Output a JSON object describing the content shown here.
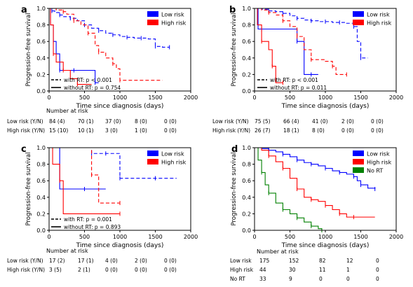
{
  "chart_data": [
    {
      "type": "line",
      "panel_label": "a",
      "xlabel": "Time since diagnosis (days)",
      "ylabel": "Progression-free survival",
      "xlim": [
        0,
        2000
      ],
      "ylim": [
        0,
        1.0
      ],
      "x_ticks": [
        "0",
        "500",
        "1000",
        "1500",
        "2000"
      ],
      "y_ticks": [
        "0.0",
        "0.2",
        "0.4",
        "0.6",
        "0.8",
        "1.0"
      ],
      "legend": [
        "Low risk",
        "High risk"
      ],
      "legend_colors": [
        "#0000ff",
        "#ff0000"
      ],
      "annotations": [
        "with RT: p < 0.001",
        "without RT: p = 0.754"
      ],
      "series": [
        {
          "name": "Low risk",
          "color": "#0000ff",
          "style": "dashed",
          "x": [
            0,
            20,
            40,
            80,
            150,
            200,
            300,
            400,
            500,
            600,
            700,
            800,
            900,
            1000,
            1100,
            1200,
            1300,
            1400,
            1500,
            1600,
            1700
          ],
          "y": [
            1.0,
            0.98,
            0.97,
            0.95,
            0.92,
            0.9,
            0.88,
            0.85,
            0.8,
            0.76,
            0.73,
            0.7,
            0.68,
            0.66,
            0.65,
            0.64,
            0.64,
            0.63,
            0.54,
            0.53,
            0.53
          ]
        },
        {
          "name": "",
          "color": "#0000ff",
          "style": "solid",
          "x": [
            0,
            20,
            60,
            100,
            150,
            250,
            350,
            550,
            650,
            700
          ],
          "y": [
            1.0,
            0.8,
            0.6,
            0.45,
            0.25,
            0.25,
            0.25,
            0.25,
            0.1,
            0.1
          ]
        },
        {
          "name": "High risk",
          "color": "#ff0000",
          "style": "dashed",
          "x": [
            0,
            100,
            200,
            250,
            350,
            450,
            550,
            650,
            700,
            800,
            900,
            950,
            1000,
            1600
          ],
          "y": [
            1.0,
            0.98,
            0.96,
            0.93,
            0.85,
            0.8,
            0.7,
            0.55,
            0.47,
            0.4,
            0.33,
            0.27,
            0.13,
            0.13
          ]
        },
        {
          "name": "",
          "color": "#ff0000",
          "style": "solid",
          "x": [
            0,
            20,
            60,
            100,
            200,
            300,
            400,
            600
          ],
          "y": [
            1.0,
            0.8,
            0.45,
            0.35,
            0.25,
            0.15,
            0.08,
            0.08
          ]
        }
      ],
      "risk_table": {
        "heading": "Number at risk",
        "rows": [
          {
            "label": "Low risk (Y/N)",
            "values": [
              "84 (4)",
              "70 (1)",
              "37 (0)",
              "8 (0)",
              "0 (0)"
            ]
          },
          {
            "label": "High risk (Y/N)",
            "values": [
              "15 (10)",
              "10 (1)",
              "3 (0)",
              "1 (0)",
              "0 (0)"
            ]
          }
        ]
      }
    },
    {
      "type": "line",
      "panel_label": "b",
      "xlabel": "Time since diagnosis (days)",
      "ylabel": "Progression-free survival",
      "xlim": [
        0,
        2000
      ],
      "ylim": [
        0,
        1.0
      ],
      "x_ticks": [
        "0",
        "500",
        "1000",
        "1500",
        "2000"
      ],
      "y_ticks": [
        "0.0",
        "0.2",
        "0.4",
        "0.6",
        "0.8",
        "1.0"
      ],
      "legend": [
        "Low risk",
        "High risk"
      ],
      "legend_colors": [
        "#0000ff",
        "#ff0000"
      ],
      "annotations": [
        "with RT: p < 0.001",
        "without RT: p = 0.011"
      ],
      "series": [
        {
          "name": "Low risk",
          "color": "#0000ff",
          "style": "dashed",
          "x": [
            0,
            100,
            200,
            300,
            400,
            500,
            600,
            700,
            800,
            900,
            1000,
            1100,
            1200,
            1300,
            1400,
            1450,
            1500,
            1600
          ],
          "y": [
            1.0,
            0.99,
            0.97,
            0.96,
            0.94,
            0.91,
            0.88,
            0.86,
            0.85,
            0.84,
            0.84,
            0.83,
            0.83,
            0.82,
            0.78,
            0.6,
            0.4,
            0.4
          ]
        },
        {
          "name": "",
          "color": "#0000ff",
          "style": "solid",
          "x": [
            0,
            50,
            100,
            500,
            600,
            700,
            800,
            900
          ],
          "y": [
            1.0,
            0.75,
            0.75,
            0.75,
            0.6,
            0.2,
            0.2,
            0.2
          ]
        },
        {
          "name": "High risk",
          "color": "#ff0000",
          "style": "dashed",
          "x": [
            0,
            100,
            200,
            300,
            400,
            500,
            600,
            700,
            800,
            1000,
            1100,
            1150,
            1300
          ],
          "y": [
            1.0,
            0.98,
            0.95,
            0.92,
            0.85,
            0.78,
            0.66,
            0.5,
            0.38,
            0.36,
            0.3,
            0.2,
            0.2
          ]
        },
        {
          "name": "",
          "color": "#ff0000",
          "style": "solid",
          "x": [
            0,
            40,
            100,
            200,
            250,
            300,
            400
          ],
          "y": [
            1.0,
            0.8,
            0.6,
            0.5,
            0.3,
            0.1,
            0.1
          ]
        }
      ],
      "risk_table": {
        "heading": "",
        "rows": [
          {
            "label": "Low risk (Y/N)",
            "values": [
              "75 (5)",
              "66 (4)",
              "41 (0)",
              "2 (0)",
              "0 (0)"
            ]
          },
          {
            "label": "High risk (Y/N)",
            "values": [
              "26 (7)",
              "18 (1)",
              "8 (0)",
              "0 (0)",
              "0 (0)"
            ]
          }
        ]
      }
    },
    {
      "type": "line",
      "panel_label": "c",
      "xlabel": "Time since diagnosis (days)",
      "ylabel": "Progression-free survival",
      "xlim": [
        0,
        2000
      ],
      "ylim": [
        0,
        1.0
      ],
      "x_ticks": [
        "0",
        "500",
        "1000",
        "1500",
        "2000"
      ],
      "y_ticks": [
        "0.0",
        "0.2",
        "0.4",
        "0.6",
        "0.8",
        "1.0"
      ],
      "legend": [
        "Low risk",
        "High risk"
      ],
      "legend_colors": [
        "#0000ff",
        "#ff0000"
      ],
      "annotations": [
        "with RT: p = 0.001",
        "without RT: p = 0.893"
      ],
      "series": [
        {
          "name": "Low risk",
          "color": "#0000ff",
          "style": "dashed",
          "x": [
            0,
            500,
            600,
            700,
            800,
            900,
            1000,
            1200,
            1500,
            1800
          ],
          "y": [
            1.0,
            1.0,
            0.93,
            0.93,
            0.93,
            0.93,
            0.63,
            0.63,
            0.63,
            0.63
          ]
        },
        {
          "name": "",
          "color": "#0000ff",
          "style": "solid",
          "x": [
            0,
            150,
            500,
            800
          ],
          "y": [
            1.0,
            0.5,
            0.5,
            0.5
          ]
        },
        {
          "name": "High risk",
          "color": "#ff0000",
          "style": "dashed",
          "x": [
            0,
            500,
            600,
            700,
            1000
          ],
          "y": [
            1.0,
            1.0,
            0.67,
            0.33,
            0.33
          ]
        },
        {
          "name": "",
          "color": "#ff0000",
          "style": "solid",
          "x": [
            0,
            50,
            150,
            200,
            1000
          ],
          "y": [
            1.0,
            0.8,
            0.6,
            0.2,
            0.2
          ]
        }
      ],
      "risk_table": {
        "heading": "Number at risk",
        "rows": [
          {
            "label": "Low risk (Y/N)",
            "values": [
              "17 (2)",
              "17 (1)",
              "4 (0)",
              "2 (0)",
              "0 (0)"
            ]
          },
          {
            "label": "High risk (Y/N)",
            "values": [
              "3 (5)",
              "2 (1)",
              "0 (0)",
              "0 (0)",
              "0 (0)"
            ]
          }
        ]
      }
    },
    {
      "type": "line",
      "panel_label": "d",
      "xlabel": "Time since diagnosis (days)",
      "ylabel": "Progression-free survival",
      "xlim": [
        0,
        2000
      ],
      "ylim": [
        0,
        1.0
      ],
      "x_ticks": [
        "0",
        "500",
        "1000",
        "1500",
        "2000"
      ],
      "y_ticks": [
        "0.0",
        "0.2",
        "0.4",
        "0.6",
        "0.8",
        "1.0"
      ],
      "legend": [
        "Low risk",
        "High risk",
        "No RT"
      ],
      "legend_colors": [
        "#0000ff",
        "#ff0000",
        "#008000"
      ],
      "annotations": [],
      "series": [
        {
          "name": "Low risk",
          "color": "#0000ff",
          "style": "solid",
          "x": [
            0,
            100,
            200,
            300,
            400,
            500,
            600,
            700,
            800,
            900,
            1000,
            1100,
            1200,
            1300,
            1400,
            1450,
            1500,
            1600,
            1700
          ],
          "y": [
            1.0,
            0.99,
            0.97,
            0.95,
            0.92,
            0.89,
            0.85,
            0.82,
            0.8,
            0.78,
            0.75,
            0.72,
            0.7,
            0.68,
            0.65,
            0.6,
            0.55,
            0.51,
            0.5
          ]
        },
        {
          "name": "High risk",
          "color": "#ff0000",
          "style": "solid",
          "x": [
            0,
            100,
            200,
            300,
            400,
            500,
            600,
            700,
            800,
            900,
            1000,
            1100,
            1200,
            1300,
            1400,
            1700
          ],
          "y": [
            1.0,
            0.97,
            0.9,
            0.83,
            0.75,
            0.63,
            0.5,
            0.4,
            0.37,
            0.35,
            0.3,
            0.25,
            0.2,
            0.16,
            0.16,
            0.16
          ]
        },
        {
          "name": "No RT",
          "color": "#008000",
          "style": "solid",
          "x": [
            0,
            50,
            100,
            150,
            200,
            300,
            400,
            500,
            600,
            700,
            800,
            900,
            950
          ],
          "y": [
            1.0,
            0.85,
            0.7,
            0.55,
            0.45,
            0.33,
            0.25,
            0.2,
            0.15,
            0.1,
            0.05,
            0.02,
            0.0
          ]
        }
      ],
      "risk_table": {
        "heading": "Number at risk",
        "rows": [
          {
            "label": "Low risk",
            "values": [
              "175",
              "152",
              "82",
              "12",
              "0"
            ]
          },
          {
            "label": "High risk",
            "values": [
              "44",
              "30",
              "11",
              "1",
              "0"
            ]
          },
          {
            "label": "No RT",
            "values": [
              "33",
              "9",
              "0",
              "0",
              "0"
            ]
          }
        ]
      }
    }
  ]
}
